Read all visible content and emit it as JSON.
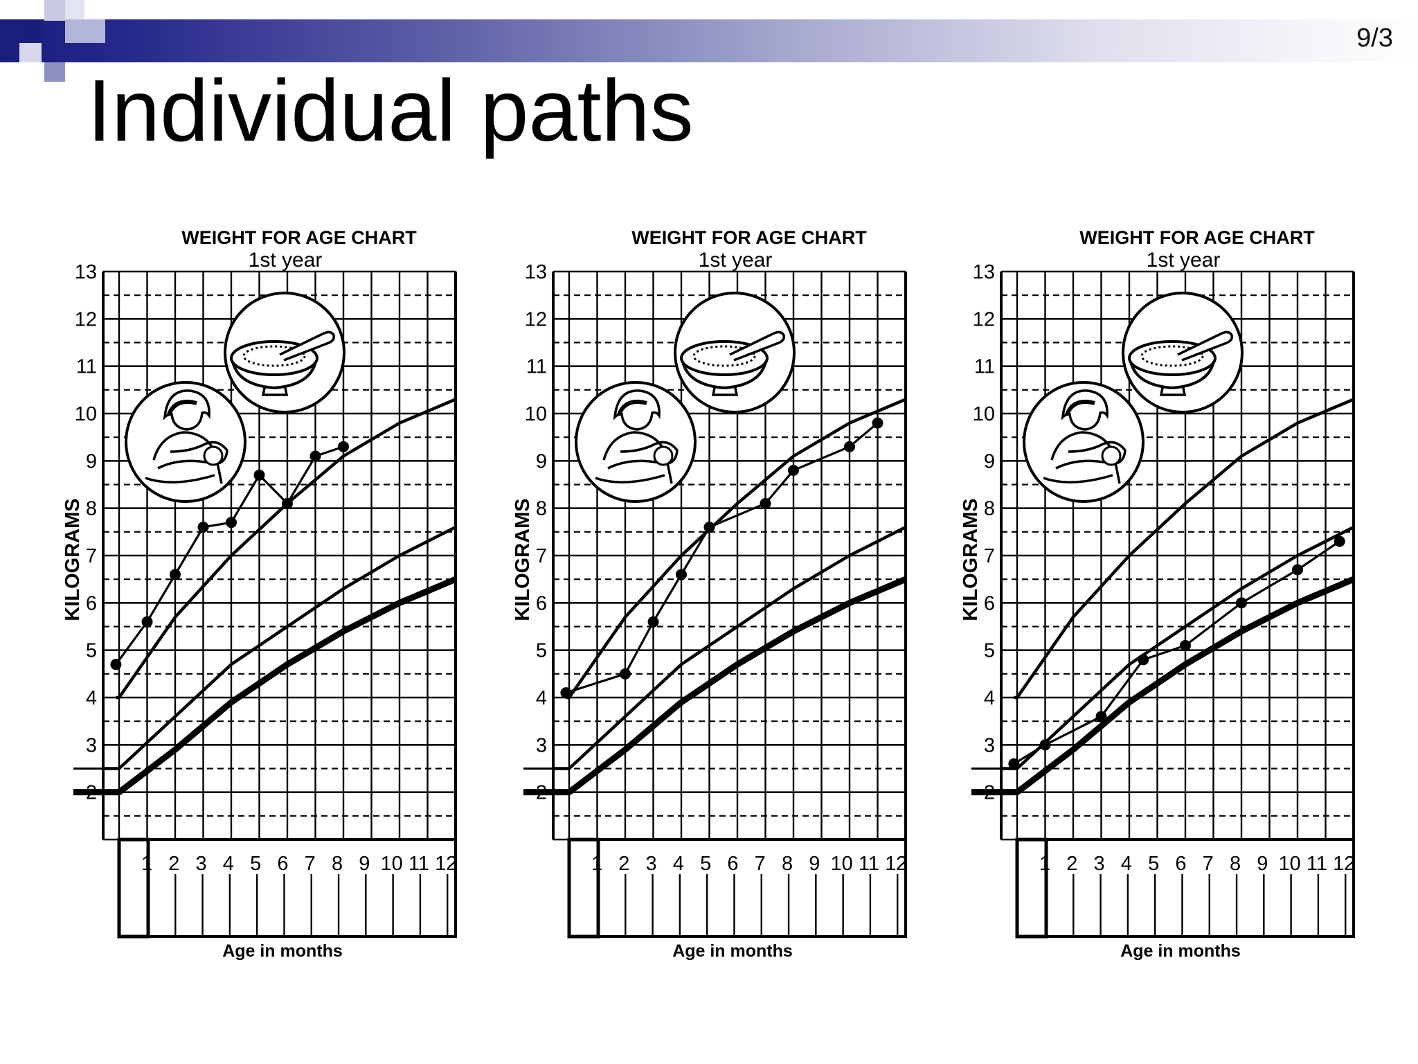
{
  "slide": {
    "number": "9/3",
    "title": "Individual paths"
  },
  "colors": {
    "header_dark": "#1b1d7c",
    "header_mid": "#7f81bd",
    "header_light": "#c8c9e3",
    "ink": "#000000"
  },
  "chart_data": [
    {
      "type": "line",
      "title": "WEIGHT FOR AGE CHART",
      "subtitle": "1st year",
      "xlabel": "Age in months",
      "ylabel": "KILOGRAMS",
      "xlim": [
        -1,
        12
      ],
      "ylim": [
        1,
        13
      ],
      "x_ticks": [
        "1",
        "2",
        "3",
        "4",
        "5",
        "6",
        "7",
        "8",
        "9",
        "10",
        "11",
        "12"
      ],
      "y_ticks": [
        "13",
        "12",
        "11",
        "10",
        "9",
        "8",
        "7",
        "6",
        "5",
        "4",
        "3",
        "2"
      ],
      "grid": true,
      "icons": [
        "breastfeeding-mother-icon",
        "food-bowl-icon"
      ],
      "reference_curves": [
        {
          "x": [
            -1,
            0,
            2,
            4,
            6,
            8,
            10,
            12
          ],
          "values": [
            2.0,
            2.0,
            2.9,
            3.9,
            4.7,
            5.4,
            6.0,
            6.5
          ]
        },
        {
          "x": [
            -1,
            0,
            2,
            4,
            6,
            8,
            10,
            12
          ],
          "values": [
            2.5,
            2.5,
            3.6,
            4.7,
            5.5,
            6.3,
            7.0,
            7.6
          ]
        },
        {
          "x": [
            -0.2,
            0,
            2,
            4,
            6,
            8,
            10,
            12
          ],
          "values": [
            4.0,
            4.0,
            5.7,
            7.0,
            8.1,
            9.1,
            9.8,
            10.3
          ]
        }
      ],
      "series": [
        {
          "x": [
            -0.2,
            1,
            2,
            3,
            4,
            5,
            6,
            7,
            8
          ],
          "values": [
            4.7,
            5.6,
            6.6,
            7.6,
            7.7,
            8.7,
            8.1,
            9.1,
            9.3
          ]
        }
      ]
    },
    {
      "type": "line",
      "title": "WEIGHT FOR AGE CHART",
      "subtitle": "1st year",
      "xlabel": "Age in months",
      "ylabel": "KILOGRAMS",
      "xlim": [
        -1,
        12
      ],
      "ylim": [
        1,
        13
      ],
      "x_ticks": [
        "1",
        "2",
        "3",
        "4",
        "5",
        "6",
        "7",
        "8",
        "9",
        "10",
        "11",
        "12"
      ],
      "y_ticks": [
        "13",
        "12",
        "11",
        "10",
        "9",
        "8",
        "7",
        "6",
        "5",
        "4",
        "3",
        "2"
      ],
      "grid": true,
      "icons": [
        "breastfeeding-mother-icon",
        "food-bowl-icon"
      ],
      "reference_curves": [
        {
          "x": [
            -1,
            0,
            2,
            4,
            6,
            8,
            10,
            12
          ],
          "values": [
            2.0,
            2.0,
            2.9,
            3.9,
            4.7,
            5.4,
            6.0,
            6.5
          ]
        },
        {
          "x": [
            -1,
            0,
            2,
            4,
            6,
            8,
            10,
            12
          ],
          "values": [
            2.5,
            2.5,
            3.6,
            4.7,
            5.5,
            6.3,
            7.0,
            7.6
          ]
        },
        {
          "x": [
            -0.2,
            0,
            2,
            4,
            6,
            8,
            10,
            12
          ],
          "values": [
            4.0,
            4.0,
            5.7,
            7.0,
            8.1,
            9.1,
            9.8,
            10.3
          ]
        }
      ],
      "series": [
        {
          "x": [
            -0.2,
            2,
            3,
            4,
            5,
            7,
            8,
            10,
            11
          ],
          "values": [
            4.1,
            4.5,
            5.6,
            6.6,
            7.6,
            8.1,
            8.8,
            9.3,
            9.8
          ]
        }
      ]
    },
    {
      "type": "line",
      "title": "WEIGHT FOR AGE CHART",
      "subtitle": "1st year",
      "xlabel": "Age in months",
      "ylabel": "KILOGRAMS",
      "xlim": [
        -1,
        12
      ],
      "ylim": [
        1,
        13
      ],
      "x_ticks": [
        "1",
        "2",
        "3",
        "4",
        "5",
        "6",
        "7",
        "8",
        "9",
        "10",
        "11",
        "12"
      ],
      "y_ticks": [
        "13",
        "12",
        "11",
        "10",
        "9",
        "8",
        "7",
        "6",
        "5",
        "4",
        "3",
        "2"
      ],
      "grid": true,
      "icons": [
        "breastfeeding-mother-icon",
        "food-bowl-icon"
      ],
      "reference_curves": [
        {
          "x": [
            -1,
            0,
            2,
            4,
            6,
            8,
            10,
            12
          ],
          "values": [
            2.0,
            2.0,
            2.9,
            3.9,
            4.7,
            5.4,
            6.0,
            6.5
          ]
        },
        {
          "x": [
            -1,
            0,
            2,
            4,
            6,
            8,
            10,
            12
          ],
          "values": [
            2.5,
            2.5,
            3.6,
            4.7,
            5.5,
            6.3,
            7.0,
            7.6
          ]
        },
        {
          "x": [
            -0.2,
            0,
            2,
            4,
            6,
            8,
            10,
            12
          ],
          "values": [
            4.0,
            4.0,
            5.7,
            7.0,
            8.1,
            9.1,
            9.8,
            10.3
          ]
        }
      ],
      "series": [
        {
          "x": [
            -0.2,
            1,
            3,
            4.5,
            6,
            8,
            10,
            11.5
          ],
          "values": [
            2.6,
            3.0,
            3.6,
            4.8,
            5.1,
            6.0,
            6.7,
            7.3
          ]
        }
      ]
    }
  ]
}
